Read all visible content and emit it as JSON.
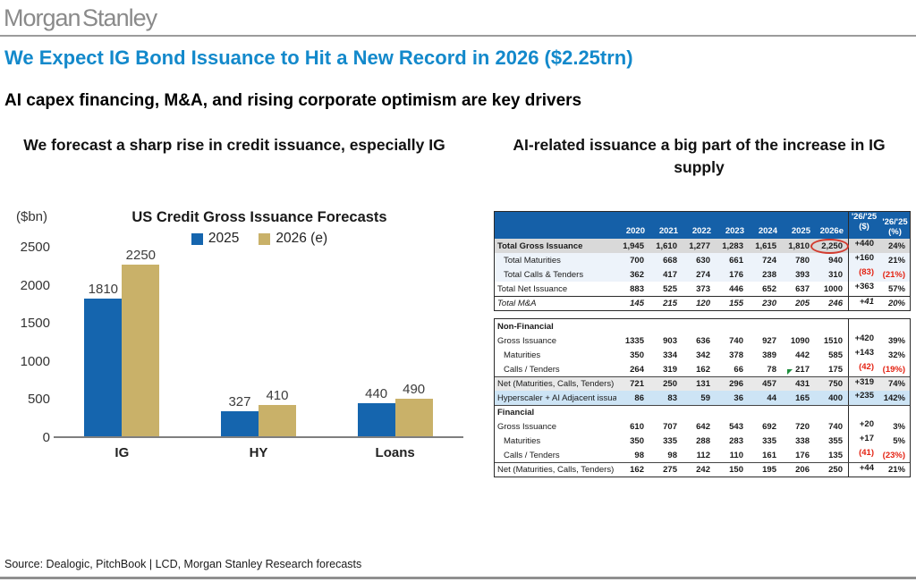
{
  "brand": {
    "logo": "Morgan Stanley"
  },
  "headline": "We Expect IG Bond Issuance to Hit a New Record in 2026 ($2.25trn)",
  "subtitle": "AI capex financing, M&A, and rising corporate optimism are key drivers",
  "left_panel": {
    "heading": "We forecast a sharp rise in credit issuance, especially IG"
  },
  "right_panel": {
    "heading": "AI-related issuance a big part of the increase in IG supply"
  },
  "chart_data": {
    "type": "bar",
    "title": "US Credit Gross Issuance Forecasts",
    "unit_label": "($bn)",
    "categories": [
      "IG",
      "HY",
      "Loans"
    ],
    "series": [
      {
        "name": "2025",
        "color": "#1565AE",
        "values": [
          1810,
          327,
          440
        ]
      },
      {
        "name": "2026 (e)",
        "color": "#C9B169",
        "values": [
          2250,
          410,
          490
        ]
      }
    ],
    "ylim": [
      0,
      2500
    ],
    "ytick_step": 500,
    "legend_position": "top-center",
    "grid": false
  },
  "table": {
    "header_color": "#1560A8",
    "col_headers": [
      "2020",
      "2021",
      "2022",
      "2023",
      "2024",
      "2025",
      "2026e",
      "'26/'25\n($)",
      "'26/'25\n(%)"
    ],
    "blocks": [
      {
        "header": true,
        "rows": [
          {
            "label": "Total Gross Issuance",
            "bold": true,
            "bg": "gray",
            "circle": 6,
            "values": [
              "1,945",
              "1,610",
              "1,277",
              "1,283",
              "1,615",
              "1,810",
              "2,250",
              "+440",
              "24%"
            ]
          },
          {
            "label": "Total Maturities",
            "indent": true,
            "bg": "blue",
            "values": [
              "700",
              "668",
              "630",
              "661",
              "724",
              "780",
              "940",
              "+160",
              "21%"
            ]
          },
          {
            "label": "Total Calls & Tenders",
            "indent": true,
            "bg": "blue",
            "red": [
              7,
              8
            ],
            "values": [
              "362",
              "417",
              "274",
              "176",
              "238",
              "393",
              "310",
              "(83)",
              "(21%)"
            ]
          },
          {
            "label": "Total Net Issuance",
            "values": [
              "883",
              "525",
              "373",
              "446",
              "652",
              "637",
              "1000",
              "+363",
              "57%"
            ]
          },
          {
            "label": "Total M&A",
            "italic": true,
            "topBorder": true,
            "values": [
              "145",
              "215",
              "120",
              "155",
              "230",
              "205",
              "246",
              "+41",
              "20%"
            ]
          }
        ]
      },
      {
        "header": false,
        "rows": [
          {
            "section": "Non-Financial"
          },
          {
            "label": "Gross Issuance",
            "values": [
              "1335",
              "903",
              "636",
              "740",
              "927",
              "1090",
              "1510",
              "+420",
              "39%"
            ]
          },
          {
            "label": "Maturities",
            "indent": true,
            "values": [
              "350",
              "334",
              "342",
              "378",
              "389",
              "442",
              "585",
              "+143",
              "32%"
            ]
          },
          {
            "label": "Calls / Tenders",
            "indent": true,
            "red": [
              7,
              8
            ],
            "greenMark": 5,
            "values": [
              "264",
              "319",
              "162",
              "66",
              "78",
              "217",
              "175",
              "(42)",
              "(19%)"
            ]
          },
          {
            "label": "Net (Maturities, Calls, Tenders)",
            "bg": "gray2",
            "topBorderThin": true,
            "values": [
              "721",
              "250",
              "131",
              "296",
              "457",
              "431",
              "750",
              "+319",
              "74%"
            ]
          },
          {
            "label": "Hyperscaler + AI Adjacent issuar",
            "bg": "hl",
            "values": [
              "86",
              "83",
              "59",
              "36",
              "44",
              "165",
              "400",
              "+235",
              "142%"
            ]
          },
          {
            "section": "Financial",
            "topBorderThin": true
          },
          {
            "label": "Gross Issuance",
            "values": [
              "610",
              "707",
              "642",
              "543",
              "692",
              "720",
              "740",
              "+20",
              "3%"
            ]
          },
          {
            "label": "Maturities",
            "indent": true,
            "values": [
              "350",
              "335",
              "288",
              "283",
              "335",
              "338",
              "355",
              "+17",
              "5%"
            ]
          },
          {
            "label": "Calls / Tenders",
            "indent": true,
            "red": [
              7,
              8
            ],
            "values": [
              "98",
              "98",
              "112",
              "110",
              "161",
              "176",
              "135",
              "(41)",
              "(23%)"
            ]
          },
          {
            "label": "Net (Maturities, Calls, Tenders)",
            "topBorderThin": true,
            "values": [
              "162",
              "275",
              "242",
              "150",
              "195",
              "206",
              "250",
              "+44",
              "21%"
            ]
          }
        ]
      }
    ]
  },
  "footer": {
    "source": "Source: Dealogic, PitchBook | LCD, Morgan Stanley Research forecasts"
  },
  "colors": {
    "headline_blue": "#1389CB",
    "bar_blue": "#1565AE",
    "bar_gold": "#C9B169",
    "table_header_blue": "#1560A8",
    "highlight_row_blue": "#CDE4F5",
    "negative_red": "#E42313",
    "annotation_red": "#D23B2F",
    "marker_green": "#1E8F3E"
  }
}
